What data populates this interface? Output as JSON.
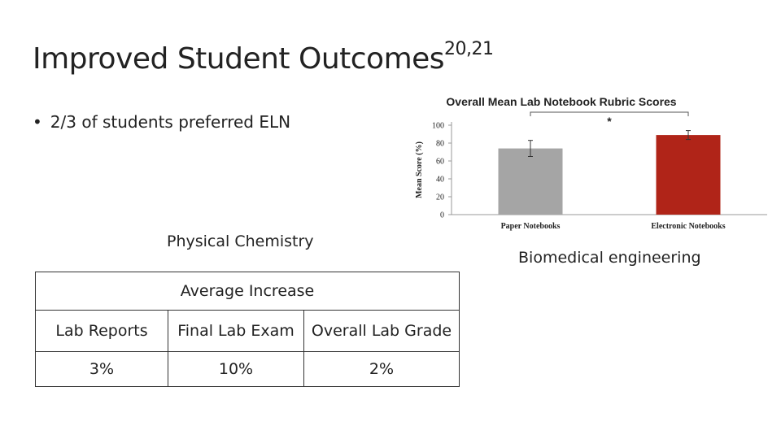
{
  "slide": {
    "title": "Improved Student Outcomes",
    "title_superscript": "20,21",
    "bullet": "2/3 of students preferred ELN",
    "left_caption": "Physical Chemistry",
    "right_caption": "Biomedical engineering"
  },
  "table": {
    "group_header": "Average Increase",
    "columns": [
      "Lab Reports",
      "Final Lab Exam",
      "Overall Lab Grade"
    ],
    "values": [
      "3%",
      "10%",
      "2%"
    ]
  },
  "chart_data": {
    "type": "bar",
    "title": "Overall Mean Lab Notebook Rubric Scores",
    "ylabel": "Mean Score (%)",
    "xlabel": "",
    "ylim": [
      0,
      100
    ],
    "yticks": [
      "0",
      "20",
      "40",
      "60",
      "80",
      "100"
    ],
    "categories": [
      "Paper Notebooks",
      "Electronic Notebooks"
    ],
    "values": [
      74,
      89
    ],
    "error": [
      9,
      5
    ],
    "bar_colors": [
      "#a5a5a5",
      "#b02418"
    ],
    "significance": "*",
    "grid": false
  }
}
